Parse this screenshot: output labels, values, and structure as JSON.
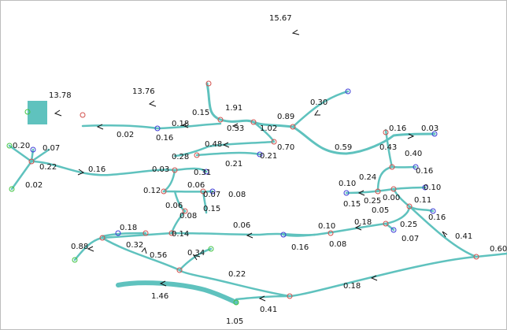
{
  "colors": {
    "river": "#5fc2be",
    "node_junction": "#d2504c",
    "node_source": "#3b3bd6",
    "node_outlet": "#44c444",
    "label": "#111111"
  },
  "labels": [
    "15.67",
    "13.78",
    "13.76",
    "1.91",
    "0.15",
    "0.18",
    "0.16",
    "0.02",
    "0.33",
    "1.02",
    "0.89",
    "0.30",
    "0.70",
    "0.48",
    "0.21",
    "0.21",
    "0.28",
    "0.31",
    "0.03",
    "0.12",
    "0.06",
    "0.07",
    "0.08",
    "0.06",
    "0.15",
    "0.08",
    "0.20",
    "0.07",
    "0.22",
    "0.02",
    "0.16",
    "0.59",
    "0.16",
    "0.43",
    "0.03",
    "0.40",
    "0.16",
    "0.24",
    "0.10",
    "0.15",
    "0.25",
    "0.00",
    "0.10",
    "0.11",
    "0.05",
    "0.16",
    "0.25",
    "0.07",
    "0.41",
    "0.60",
    "0.18",
    "0.10",
    "0.08",
    "0.16",
    "0.06",
    "0.14",
    "0.18",
    "0.32",
    "0.88",
    "0.56",
    "0.34",
    "0.22",
    "1.46",
    "0.18",
    "0.41",
    "1.05"
  ]
}
